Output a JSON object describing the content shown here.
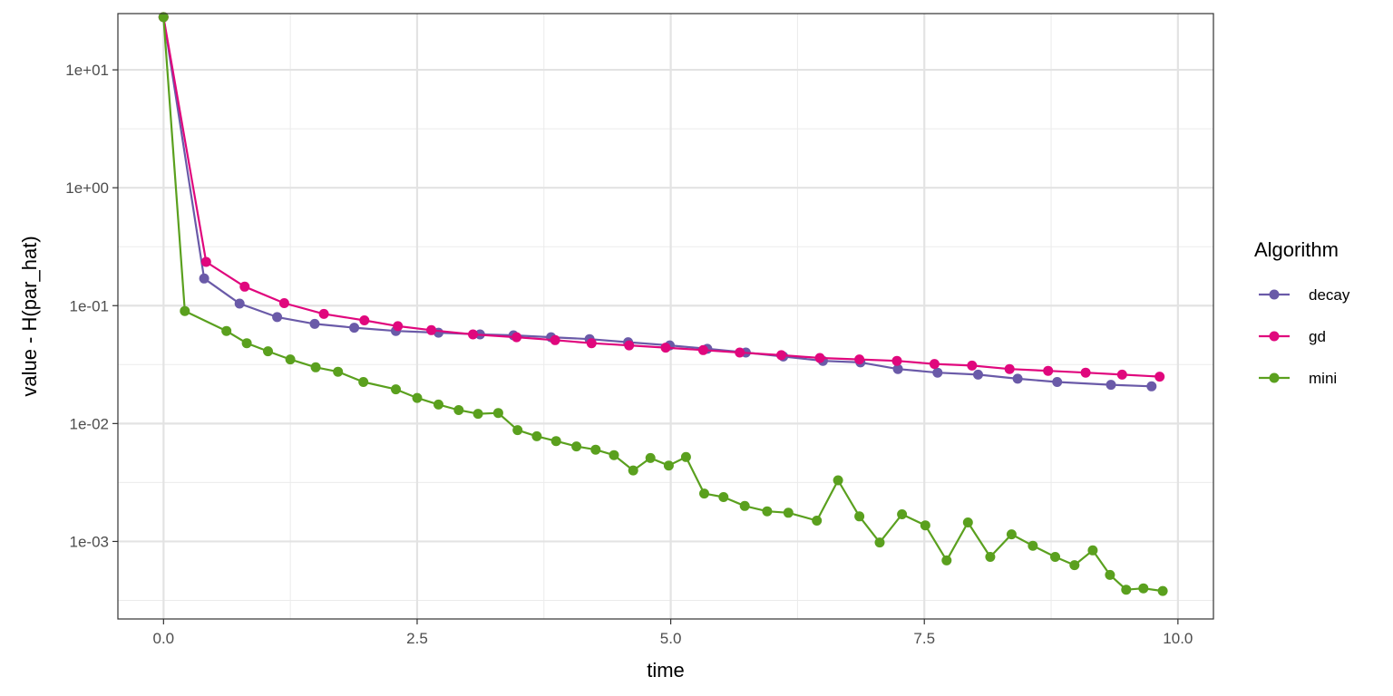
{
  "chart_data": {
    "type": "line",
    "title": "",
    "xlabel": "time",
    "ylabel": "value - H(par_hat)",
    "xlim": [
      -0.45,
      10.35
    ],
    "ylim": [
      0.00022,
      30
    ],
    "y_scale": "log10",
    "grid": true,
    "legend_title": "Algorithm",
    "legend_position": "right",
    "x_ticks": [
      {
        "value": 0,
        "label": "0.0"
      },
      {
        "value": 2.5,
        "label": "2.5"
      },
      {
        "value": 5,
        "label": "5.0"
      },
      {
        "value": 7.5,
        "label": "7.5"
      },
      {
        "value": 10,
        "label": "10.0"
      }
    ],
    "y_ticks": [
      {
        "value": 0.001,
        "label": "1e-03"
      },
      {
        "value": 0.01,
        "label": "1e-02"
      },
      {
        "value": 0.1,
        "label": "1e-01"
      },
      {
        "value": 1,
        "label": "1e+00"
      },
      {
        "value": 10,
        "label": "1e+01"
      }
    ],
    "series": [
      {
        "name": "decay",
        "color": "#6a5aa8",
        "x": [
          0.0,
          0.4,
          0.75,
          1.12,
          1.49,
          1.88,
          2.29,
          2.71,
          3.12,
          3.45,
          3.82,
          4.2,
          4.58,
          4.99,
          5.36,
          5.74,
          6.11,
          6.5,
          6.87,
          7.24,
          7.63,
          8.03,
          8.42,
          8.81,
          9.34,
          9.74
        ],
        "y": [
          28.0,
          0.17,
          0.104,
          0.08,
          0.07,
          0.065,
          0.061,
          0.059,
          0.057,
          0.056,
          0.054,
          0.052,
          0.049,
          0.046,
          0.043,
          0.04,
          0.037,
          0.034,
          0.033,
          0.029,
          0.027,
          0.026,
          0.024,
          0.0225,
          0.0213,
          0.0207
        ]
      },
      {
        "name": "gd",
        "color": "#e0077d",
        "x": [
          0.0,
          0.42,
          0.8,
          1.19,
          1.58,
          1.98,
          2.31,
          2.64,
          3.05,
          3.48,
          3.86,
          4.22,
          4.59,
          4.95,
          5.32,
          5.68,
          6.09,
          6.47,
          6.86,
          7.23,
          7.6,
          7.97,
          8.34,
          8.72,
          9.09,
          9.45,
          9.82
        ],
        "y": [
          28.0,
          0.235,
          0.145,
          0.105,
          0.085,
          0.075,
          0.067,
          0.062,
          0.057,
          0.054,
          0.051,
          0.048,
          0.046,
          0.044,
          0.042,
          0.04,
          0.038,
          0.036,
          0.035,
          0.034,
          0.032,
          0.031,
          0.029,
          0.028,
          0.027,
          0.026,
          0.025
        ]
      },
      {
        "name": "mini",
        "color": "#5aa01e",
        "x": [
          0.0,
          0.21,
          0.62,
          0.82,
          1.03,
          1.25,
          1.5,
          1.72,
          1.97,
          2.29,
          2.5,
          2.71,
          2.91,
          3.1,
          3.3,
          3.49,
          3.68,
          3.87,
          4.07,
          4.26,
          4.44,
          4.63,
          4.8,
          4.98,
          5.15,
          5.33,
          5.52,
          5.73,
          5.95,
          6.16,
          6.44,
          6.65,
          6.86,
          7.06,
          7.28,
          7.51,
          7.72,
          7.93,
          8.15,
          8.36,
          8.57,
          8.79,
          8.98,
          9.16,
          9.33,
          9.49,
          9.66,
          9.85
        ],
        "y": [
          28.0,
          0.09,
          0.061,
          0.048,
          0.041,
          0.035,
          0.03,
          0.0275,
          0.0225,
          0.0195,
          0.0165,
          0.0145,
          0.013,
          0.0121,
          0.0123,
          0.0088,
          0.0078,
          0.0071,
          0.0064,
          0.006,
          0.0054,
          0.004,
          0.0051,
          0.0044,
          0.0052,
          0.00255,
          0.00238,
          0.002,
          0.0018,
          0.00175,
          0.0015,
          0.0033,
          0.00163,
          0.00098,
          0.0017,
          0.00137,
          0.00069,
          0.00145,
          0.00074,
          0.00115,
          0.00092,
          0.00074,
          0.00063,
          0.00084,
          0.00052,
          0.00039,
          0.0004,
          0.00038
        ]
      }
    ]
  }
}
